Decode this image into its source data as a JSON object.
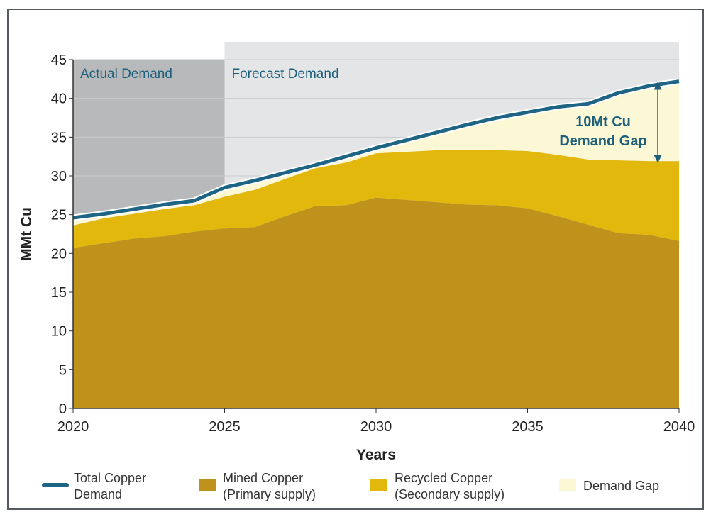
{
  "chart_data": {
    "type": "area",
    "title": "",
    "xlabel": "Years",
    "ylabel": "MMt Cu",
    "xlim": [
      2020,
      2040
    ],
    "ylim": [
      0,
      45
    ],
    "x_ticks": [
      "2020",
      "2025",
      "2030",
      "2035",
      "2040"
    ],
    "y_ticks": [
      "0",
      "5",
      "10",
      "15",
      "20",
      "25",
      "30",
      "35",
      "40",
      "45"
    ],
    "grid": true,
    "regions": [
      {
        "label": "Actual Demand",
        "x_start": 2020,
        "x_end": 2025,
        "color": "#b8b9bb"
      },
      {
        "label": "Forecast Demand",
        "x_start": 2025,
        "x_end": 2040,
        "color": "#e4e5e7"
      }
    ],
    "annotation": {
      "line1": "10Mt Cu",
      "line2": "Demand Gap",
      "x": 2039.3,
      "y_from": 31.9,
      "y_to": 41.9
    },
    "years": [
      2020,
      2021,
      2022,
      2023,
      2024,
      2025,
      2026,
      2027,
      2028,
      2029,
      2030,
      2031,
      2032,
      2033,
      2034,
      2035,
      2036,
      2037,
      2038,
      2039,
      2040
    ],
    "series": [
      {
        "name": "Mined Copper (Primary supply)",
        "color": "#bf921c",
        "values": [
          20.7,
          21.3,
          21.9,
          22.2,
          22.8,
          23.2,
          23.4,
          24.8,
          26.1,
          26.2,
          27.2,
          26.9,
          26.6,
          26.3,
          26.2,
          25.8,
          24.8,
          23.7,
          22.6,
          22.4,
          21.6
        ]
      },
      {
        "name": "Recycled Copper (Secondary supply)",
        "color": "#e2b80c",
        "values": [
          23.6,
          24.5,
          25.1,
          25.7,
          26.2,
          27.3,
          28.2,
          29.6,
          31.0,
          31.7,
          32.9,
          33.1,
          33.3,
          33.3,
          33.3,
          33.2,
          32.7,
          32.1,
          32.0,
          31.9,
          31.9
        ]
      },
      {
        "name": "Total Copper Demand",
        "color": "#1d6485",
        "values": [
          24.6,
          25.1,
          25.7,
          26.3,
          26.8,
          28.5,
          29.4,
          30.4,
          31.4,
          32.5,
          33.6,
          34.6,
          35.6,
          36.6,
          37.5,
          38.2,
          38.9,
          39.3,
          40.7,
          41.6,
          42.2
        ]
      }
    ],
    "legend": {
      "placement": "bottom",
      "items": [
        {
          "key": "total",
          "line1": "Total Copper",
          "line2": "Demand",
          "color": "#1d6485",
          "kind": "line"
        },
        {
          "key": "mined",
          "line1": "Mined Copper",
          "line2": "(Primary supply)",
          "color": "#bf921c",
          "kind": "box"
        },
        {
          "key": "recycled",
          "line1": "Recycled Copper",
          "line2": "(Secondary supply)",
          "color": "#e2b80c",
          "kind": "box"
        },
        {
          "key": "gap",
          "line1": "Demand Gap",
          "line2": "",
          "color": "#fcf8d6",
          "kind": "box"
        }
      ]
    }
  }
}
